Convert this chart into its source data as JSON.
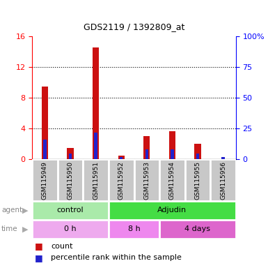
{
  "title": "GDS2119 / 1392809_at",
  "samples": [
    "GSM115949",
    "GSM115950",
    "GSM115951",
    "GSM115952",
    "GSM115953",
    "GSM115954",
    "GSM115955",
    "GSM115956"
  ],
  "red_values": [
    9.5,
    1.5,
    14.5,
    0.5,
    3.0,
    3.7,
    2.0,
    0.05
  ],
  "blue_values_pct": [
    16,
    5,
    22,
    2,
    8,
    8,
    5,
    2
  ],
  "ylim_left": [
    0,
    16
  ],
  "ylim_right": [
    0,
    100
  ],
  "yticks_left": [
    0,
    4,
    8,
    12,
    16
  ],
  "yticks_right": [
    0,
    25,
    50,
    75,
    100
  ],
  "ytick_labels_right": [
    "0",
    "25",
    "50",
    "75",
    "100%"
  ],
  "red_color": "#cc1111",
  "blue_color": "#2222cc",
  "bar_bg_color": "#c8c8c8",
  "agent_groups": [
    {
      "label": "control",
      "start": 0,
      "end": 3,
      "color": "#aaeaaa"
    },
    {
      "label": "Adjudin",
      "start": 3,
      "end": 8,
      "color": "#44dd44"
    }
  ],
  "time_groups": [
    {
      "label": "0 h",
      "start": 0,
      "end": 3,
      "color": "#eeaaee"
    },
    {
      "label": "8 h",
      "start": 3,
      "end": 5,
      "color": "#ee88ee"
    },
    {
      "label": "4 days",
      "start": 5,
      "end": 8,
      "color": "#dd66cc"
    }
  ],
  "legend_count": "count",
  "legend_pct": "percentile rank within the sample",
  "red_bar_width": 0.25,
  "blue_bar_width": 0.12
}
